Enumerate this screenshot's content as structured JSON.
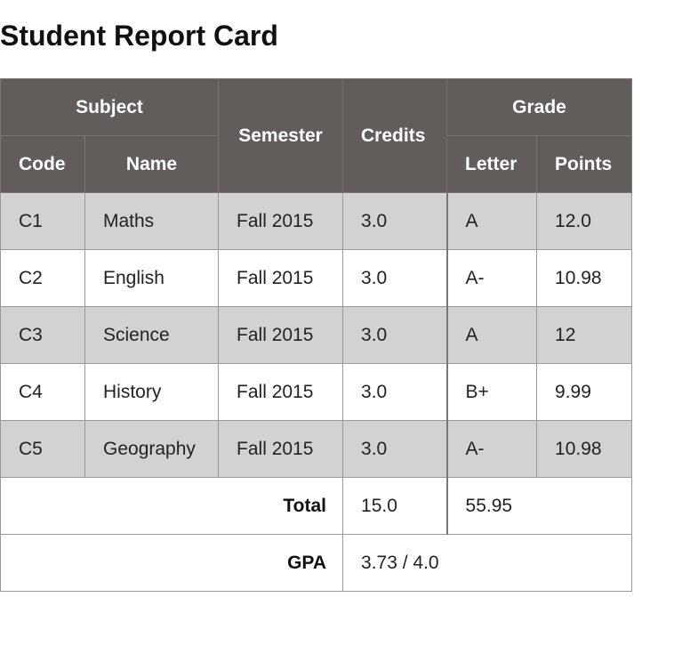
{
  "title": "Student Report Card",
  "headers": {
    "subject": "Subject",
    "semester": "Semester",
    "credits": "Credits",
    "grade": "Grade",
    "code": "Code",
    "name": "Name",
    "letter": "Letter",
    "points": "Points"
  },
  "rows": [
    {
      "code": "C1",
      "name": "Maths",
      "semester": "Fall 2015",
      "credits": "3.0",
      "letter": "A",
      "points": "12.0"
    },
    {
      "code": "C2",
      "name": "English",
      "semester": "Fall 2015",
      "credits": "3.0",
      "letter": "A-",
      "points": "10.98"
    },
    {
      "code": "C3",
      "name": "Science",
      "semester": "Fall 2015",
      "credits": "3.0",
      "letter": "A",
      "points": "12"
    },
    {
      "code": "C4",
      "name": "History",
      "semester": "Fall 2015",
      "credits": "3.0",
      "letter": "B+",
      "points": "9.99"
    },
    {
      "code": "C5",
      "name": "Geography",
      "semester": "Fall 2015",
      "credits": "3.0",
      "letter": "A-",
      "points": "10.98"
    }
  ],
  "total": {
    "label": "Total",
    "credits": "15.0",
    "points": "55.95"
  },
  "gpa": {
    "label": "GPA",
    "value": "3.73 / 4.0"
  },
  "colors": {
    "header_bg": "#625c5a",
    "row_shade": "#d4d2d0"
  }
}
